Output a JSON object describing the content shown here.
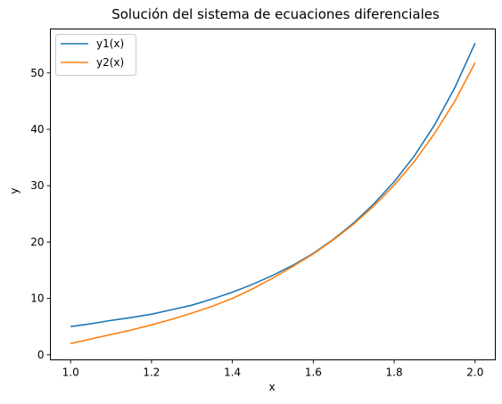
{
  "chart_data": {
    "type": "line",
    "title": "Solución del sistema de ecuaciones diferenciales",
    "xlabel": "x",
    "ylabel": "y",
    "xlim": [
      0.95,
      2.05
    ],
    "ylim": [
      -0.9,
      57.8
    ],
    "xticks": [
      "1.0",
      "1.2",
      "1.4",
      "1.6",
      "1.8",
      "2.0"
    ],
    "yticks": [
      "0",
      "10",
      "20",
      "30",
      "40",
      "50"
    ],
    "grid": false,
    "legend_position": "top-left",
    "x": [
      1.0,
      1.05,
      1.1,
      1.15,
      1.2,
      1.25,
      1.3,
      1.35,
      1.4,
      1.45,
      1.5,
      1.55,
      1.6,
      1.65,
      1.7,
      1.75,
      1.8,
      1.85,
      1.9,
      1.95,
      2.0
    ],
    "series": [
      {
        "name": "y1(x)",
        "color": "#1f77b4",
        "values": [
          5.0,
          5.5,
          6.1,
          6.6,
          7.2,
          8.0,
          8.8,
          9.9,
          11.1,
          12.5,
          14.1,
          15.9,
          18.0,
          20.5,
          23.4,
          26.8,
          30.7,
          35.3,
          40.8,
          47.4,
          55.3
        ]
      },
      {
        "name": "y2(x)",
        "color": "#ff7f0e",
        "values": [
          2.0,
          2.8,
          3.6,
          4.4,
          5.3,
          6.3,
          7.4,
          8.6,
          10.0,
          11.7,
          13.6,
          15.7,
          17.9,
          20.4,
          23.2,
          26.4,
          30.1,
          34.3,
          39.3,
          45.0,
          51.8
        ]
      }
    ]
  }
}
